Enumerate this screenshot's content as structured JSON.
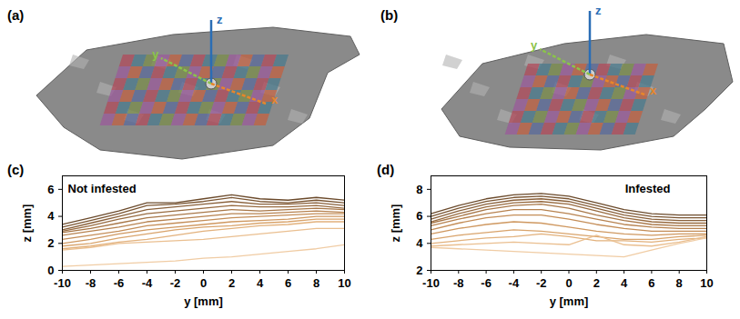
{
  "images": [
    {
      "label": "(a)",
      "axes": [
        "z",
        "y",
        "x"
      ]
    },
    {
      "label": "(b)",
      "axes": [
        "z",
        "y",
        "x"
      ]
    }
  ],
  "chart_data": [
    {
      "type": "line",
      "title": "(c)",
      "xlabel": "y [mm]",
      "ylabel": "z [mm]",
      "annotations": [
        "Not infested"
      ],
      "x": [
        -10,
        -8,
        -6,
        -4,
        -2,
        0,
        2,
        4,
        6,
        8,
        10
      ],
      "xlim": [
        -10,
        10
      ],
      "xticks": [
        -10,
        -8,
        -6,
        -4,
        -2,
        0,
        2,
        4,
        6,
        8,
        10
      ],
      "ylim": [
        0,
        7
      ],
      "yticks": [
        0,
        2,
        4,
        6
      ],
      "series": [
        {
          "color": "#6b4a2b",
          "values": [
            3.4,
            3.9,
            4.4,
            5.0,
            5.0,
            5.3,
            5.6,
            5.3,
            5.2,
            5.4,
            5.2
          ]
        },
        {
          "color": "#7a5532",
          "values": [
            3.2,
            3.7,
            4.2,
            4.8,
            4.9,
            5.1,
            5.4,
            5.1,
            5.0,
            5.2,
            5.0
          ]
        },
        {
          "color": "#89603a",
          "values": [
            3.0,
            3.5,
            4.0,
            4.5,
            4.7,
            4.9,
            5.1,
            4.9,
            4.9,
            5.0,
            4.8
          ]
        },
        {
          "color": "#986b40",
          "values": [
            2.9,
            3.3,
            3.8,
            4.2,
            4.4,
            4.6,
            4.8,
            4.7,
            4.7,
            4.8,
            4.6
          ]
        },
        {
          "color": "#a87748",
          "values": [
            2.8,
            3.1,
            3.5,
            3.9,
            4.1,
            4.3,
            4.5,
            4.4,
            4.5,
            4.6,
            4.5
          ]
        },
        {
          "color": "#b7824f",
          "values": [
            2.6,
            2.9,
            3.2,
            3.6,
            3.8,
            4.0,
            4.2,
            4.2,
            4.3,
            4.4,
            4.3
          ]
        },
        {
          "color": "#c48d57",
          "values": [
            2.3,
            2.6,
            2.9,
            3.3,
            3.5,
            3.7,
            3.9,
            4.0,
            4.1,
            4.2,
            4.2
          ]
        },
        {
          "color": "#cf9860",
          "values": [
            2.0,
            2.3,
            2.7,
            3.0,
            3.2,
            3.4,
            3.6,
            3.7,
            3.8,
            4.0,
            4.0
          ]
        },
        {
          "color": "#d9a46c",
          "values": [
            1.8,
            2.0,
            2.4,
            2.7,
            3.0,
            3.2,
            3.3,
            3.5,
            3.6,
            3.8,
            3.8
          ]
        },
        {
          "color": "#e2b17c",
          "values": [
            1.6,
            1.8,
            2.1,
            2.3,
            2.6,
            2.9,
            3.1,
            3.3,
            3.4,
            3.6,
            3.6
          ]
        },
        {
          "color": "#eabf90",
          "values": [
            1.5,
            1.7,
            2.0,
            2.1,
            2.2,
            2.3,
            2.5,
            2.7,
            2.9,
            3.1,
            3.1
          ]
        },
        {
          "color": "#f0cca4",
          "values": [
            0.3,
            0.4,
            0.5,
            0.6,
            0.7,
            0.9,
            1.0,
            1.2,
            1.4,
            1.6,
            1.9
          ]
        }
      ]
    },
    {
      "type": "line",
      "title": "(d)",
      "xlabel": "y [mm]",
      "ylabel": "z [mm]",
      "annotations": [
        "Infested"
      ],
      "x": [
        -10,
        -8,
        -6,
        -4,
        -2,
        0,
        2,
        4,
        6,
        8,
        10
      ],
      "xlim": [
        -10,
        10
      ],
      "xticks": [
        -10,
        -8,
        -6,
        -4,
        -2,
        0,
        2,
        4,
        6,
        8,
        10
      ],
      "ylim": [
        2,
        9
      ],
      "yticks": [
        2,
        4,
        6,
        8
      ],
      "series": [
        {
          "color": "#6b4a2b",
          "values": [
            6.2,
            6.8,
            7.3,
            7.6,
            7.7,
            7.5,
            7.0,
            6.5,
            6.2,
            6.1,
            6.1
          ]
        },
        {
          "color": "#7a5532",
          "values": [
            6.0,
            6.6,
            7.1,
            7.4,
            7.5,
            7.3,
            6.8,
            6.3,
            6.0,
            5.9,
            5.9
          ]
        },
        {
          "color": "#89603a",
          "values": [
            5.8,
            6.4,
            6.9,
            7.2,
            7.3,
            7.1,
            6.6,
            6.1,
            5.8,
            5.7,
            5.7
          ]
        },
        {
          "color": "#986b40",
          "values": [
            5.6,
            6.2,
            6.7,
            7.0,
            7.1,
            6.9,
            6.4,
            5.9,
            5.6,
            5.5,
            5.5
          ]
        },
        {
          "color": "#a87748",
          "values": [
            5.5,
            6.0,
            6.5,
            6.8,
            6.9,
            6.6,
            6.1,
            5.7,
            5.4,
            5.3,
            5.3
          ]
        },
        {
          "color": "#b7824f",
          "values": [
            5.3,
            5.8,
            6.2,
            6.5,
            6.5,
            6.2,
            5.8,
            5.4,
            5.2,
            5.1,
            5.1
          ]
        },
        {
          "color": "#c48d57",
          "values": [
            5.0,
            5.5,
            5.9,
            6.1,
            6.1,
            5.8,
            5.4,
            5.1,
            4.9,
            4.9,
            4.9
          ]
        },
        {
          "color": "#cf9860",
          "values": [
            4.7,
            5.1,
            5.4,
            5.6,
            5.5,
            5.2,
            4.9,
            4.7,
            4.6,
            4.7,
            4.7
          ]
        },
        {
          "color": "#d9a46c",
          "values": [
            4.3,
            4.6,
            4.8,
            5.0,
            4.9,
            4.7,
            4.5,
            4.3,
            4.3,
            4.5,
            4.6
          ]
        },
        {
          "color": "#e2b17c",
          "values": [
            4.0,
            4.2,
            4.4,
            4.5,
            4.7,
            4.5,
            4.2,
            4.2,
            4.1,
            4.3,
            4.4
          ]
        },
        {
          "color": "#eabf90",
          "values": [
            3.8,
            3.9,
            4.0,
            4.1,
            4.0,
            3.9,
            4.6,
            3.9,
            3.8,
            4.1,
            4.5
          ]
        },
        {
          "color": "#f0cca4",
          "values": [
            3.7,
            3.6,
            3.5,
            3.4,
            3.3,
            3.2,
            3.1,
            3.0,
            3.5,
            4.0,
            4.4
          ]
        }
      ]
    }
  ]
}
